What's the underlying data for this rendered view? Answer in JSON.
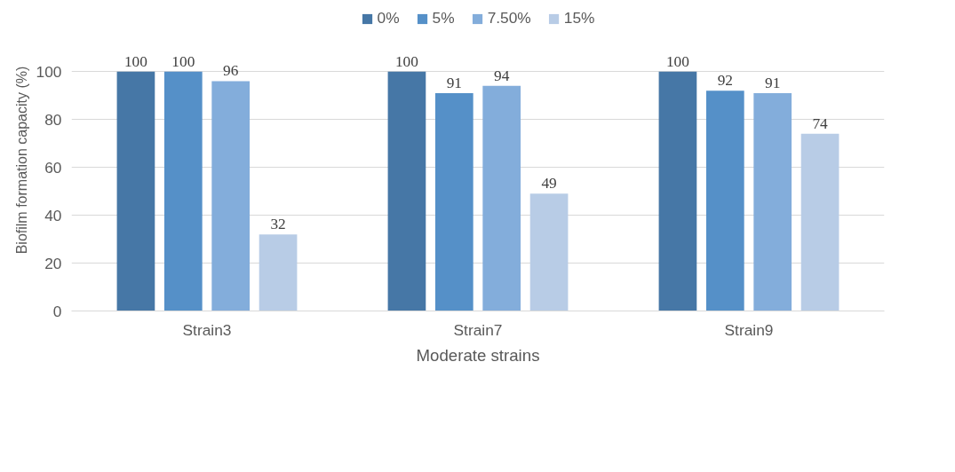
{
  "chart_data": {
    "type": "bar",
    "xlabel": "Moderate strains",
    "ylabel": "Biofilm formation capacity (%)",
    "categories": [
      "Strain3",
      "Strain7",
      "Strain9"
    ],
    "series": [
      {
        "name": "0%",
        "color": "#4677a6",
        "values": [
          100,
          100,
          100
        ]
      },
      {
        "name": "5%",
        "color": "#5590c8",
        "values": [
          100,
          91,
          92
        ]
      },
      {
        "name": "7.50%",
        "color": "#83addb",
        "values": [
          96,
          94,
          91
        ]
      },
      {
        "name": "15%",
        "color": "#b8cce6",
        "values": [
          32,
          49,
          74
        ]
      }
    ],
    "ylim": [
      0,
      100
    ],
    "yticks": [
      0,
      20,
      40,
      60,
      80,
      100
    ],
    "grid": "y",
    "legend": "top",
    "data_labels": true
  }
}
